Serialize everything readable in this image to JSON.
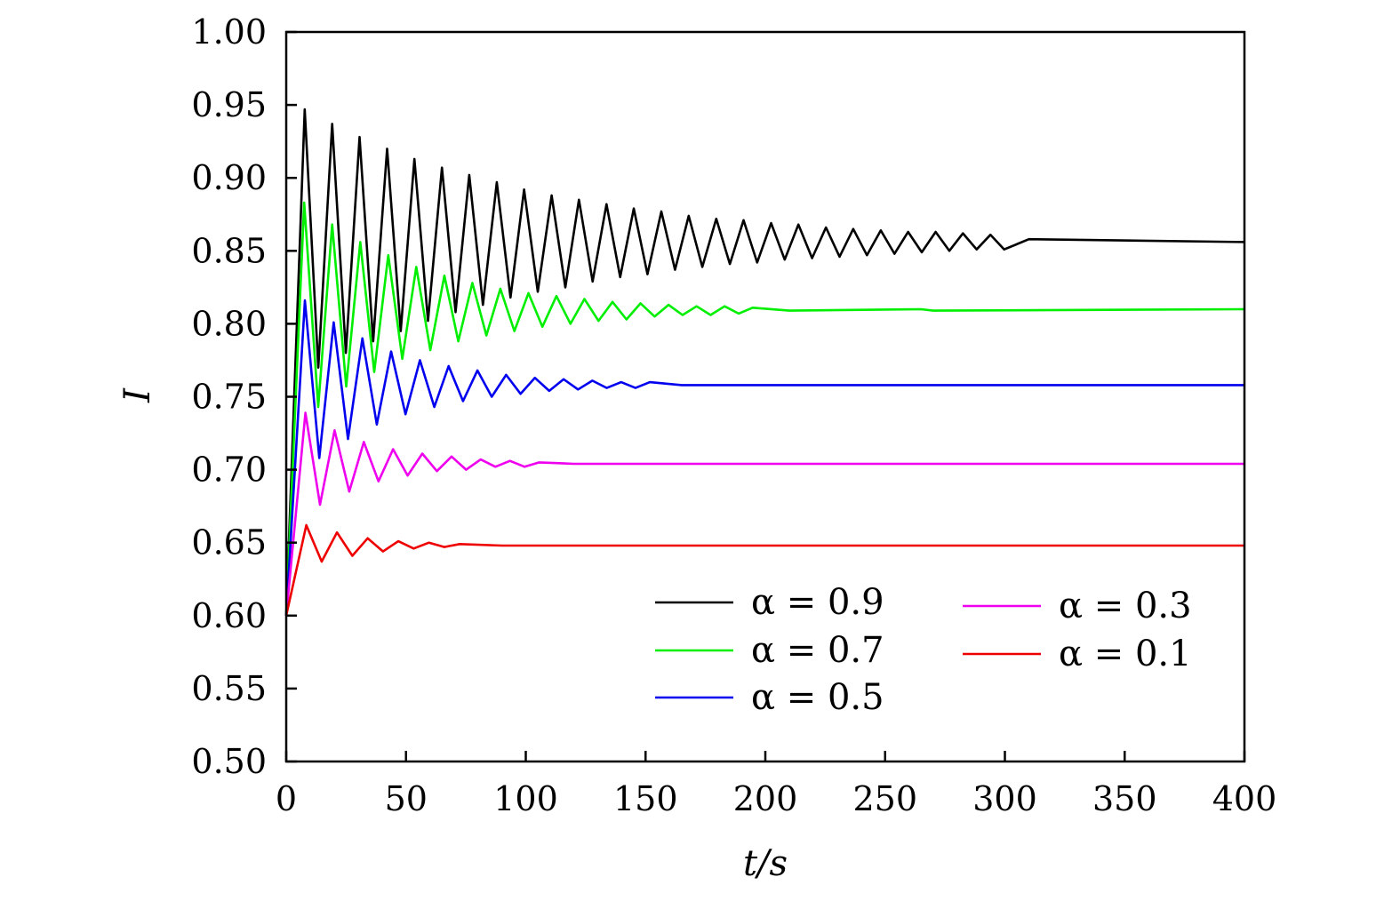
{
  "chart_data": {
    "type": "line",
    "title": "",
    "xlabel": "t/s",
    "ylabel": "I",
    "xlim": [
      0,
      400
    ],
    "ylim": [
      0.5,
      1.0
    ],
    "xticks": [
      "0",
      "50",
      "100",
      "150",
      "200",
      "250",
      "300",
      "350",
      "400"
    ],
    "yticks": [
      "0.50",
      "0.55",
      "0.60",
      "0.65",
      "0.70",
      "0.75",
      "0.80",
      "0.85",
      "0.90",
      "0.95",
      "1.00"
    ],
    "grid": false,
    "legend": "bottom-right",
    "series": [
      {
        "name": "α = 0.9",
        "color": "#000000",
        "points": [
          [
            0,
            0.6
          ],
          [
            7.7,
            0.947
          ],
          [
            13.4,
            0.77
          ],
          [
            19.2,
            0.937
          ],
          [
            24.9,
            0.78
          ],
          [
            30.6,
            0.928
          ],
          [
            36.3,
            0.788
          ],
          [
            42.1,
            0.92
          ],
          [
            47.8,
            0.795
          ],
          [
            53.5,
            0.913
          ],
          [
            59.2,
            0.802
          ],
          [
            65.0,
            0.907
          ],
          [
            70.7,
            0.808
          ],
          [
            76.4,
            0.902
          ],
          [
            82.1,
            0.813
          ],
          [
            87.9,
            0.897
          ],
          [
            93.6,
            0.818
          ],
          [
            99.3,
            0.892
          ],
          [
            105.0,
            0.822
          ],
          [
            110.8,
            0.888
          ],
          [
            116.5,
            0.825
          ],
          [
            122.2,
            0.885
          ],
          [
            127.9,
            0.829
          ],
          [
            133.7,
            0.882
          ],
          [
            139.4,
            0.832
          ],
          [
            145.1,
            0.879
          ],
          [
            150.8,
            0.834
          ],
          [
            156.6,
            0.877
          ],
          [
            162.3,
            0.837
          ],
          [
            168.0,
            0.874
          ],
          [
            173.7,
            0.839
          ],
          [
            179.5,
            0.872
          ],
          [
            185.2,
            0.841
          ],
          [
            190.9,
            0.871
          ],
          [
            196.6,
            0.842
          ],
          [
            202.4,
            0.869
          ],
          [
            208.1,
            0.844
          ],
          [
            213.8,
            0.868
          ],
          [
            219.5,
            0.845
          ],
          [
            225.3,
            0.866
          ],
          [
            231.0,
            0.846
          ],
          [
            236.7,
            0.865
          ],
          [
            242.4,
            0.847
          ],
          [
            248.2,
            0.864
          ],
          [
            253.9,
            0.848
          ],
          [
            259.6,
            0.863
          ],
          [
            265.3,
            0.849
          ],
          [
            271.1,
            0.863
          ],
          [
            276.8,
            0.85
          ],
          [
            282.5,
            0.862
          ],
          [
            288.2,
            0.851
          ],
          [
            294.0,
            0.861
          ],
          [
            299.7,
            0.851
          ],
          [
            310,
            0.858
          ],
          [
            400,
            0.856
          ]
        ]
      },
      {
        "name": "α = 0.7",
        "color": "#00ee00",
        "points": [
          [
            0,
            0.6
          ],
          [
            7.5,
            0.883
          ],
          [
            13.35,
            0.743
          ],
          [
            19.2,
            0.868
          ],
          [
            25.05,
            0.757
          ],
          [
            30.9,
            0.856
          ],
          [
            36.75,
            0.767
          ],
          [
            42.6,
            0.847
          ],
          [
            48.45,
            0.776
          ],
          [
            54.3,
            0.839
          ],
          [
            60.15,
            0.782
          ],
          [
            66.0,
            0.833
          ],
          [
            71.85,
            0.788
          ],
          [
            77.7,
            0.828
          ],
          [
            83.55,
            0.792
          ],
          [
            89.4,
            0.824
          ],
          [
            95.25,
            0.795
          ],
          [
            101.1,
            0.821
          ],
          [
            106.95,
            0.798
          ],
          [
            112.8,
            0.819
          ],
          [
            118.65,
            0.8
          ],
          [
            124.5,
            0.817
          ],
          [
            130.35,
            0.802
          ],
          [
            136.2,
            0.815
          ],
          [
            142.05,
            0.803
          ],
          [
            147.9,
            0.814
          ],
          [
            153.75,
            0.805
          ],
          [
            159.6,
            0.813
          ],
          [
            165.45,
            0.806
          ],
          [
            171.3,
            0.812
          ],
          [
            177.15,
            0.806
          ],
          [
            183.0,
            0.812
          ],
          [
            188.85,
            0.807
          ],
          [
            194.7,
            0.811
          ],
          [
            210,
            0.809
          ],
          [
            265,
            0.81
          ],
          [
            270,
            0.809
          ],
          [
            400,
            0.81
          ]
        ]
      },
      {
        "name": "α = 0.5",
        "color": "#0000ee",
        "points": [
          [
            0,
            0.6
          ],
          [
            7.8,
            0.816
          ],
          [
            13.8,
            0.708
          ],
          [
            19.8,
            0.801
          ],
          [
            25.8,
            0.721
          ],
          [
            31.8,
            0.79
          ],
          [
            37.8,
            0.731
          ],
          [
            43.8,
            0.781
          ],
          [
            49.8,
            0.738
          ],
          [
            55.8,
            0.775
          ],
          [
            61.8,
            0.743
          ],
          [
            67.8,
            0.771
          ],
          [
            73.8,
            0.747
          ],
          [
            79.8,
            0.768
          ],
          [
            85.8,
            0.75
          ],
          [
            91.8,
            0.765
          ],
          [
            97.8,
            0.752
          ],
          [
            103.8,
            0.763
          ],
          [
            109.8,
            0.754
          ],
          [
            115.8,
            0.762
          ],
          [
            121.8,
            0.755
          ],
          [
            127.8,
            0.761
          ],
          [
            133.8,
            0.756
          ],
          [
            139.8,
            0.76
          ],
          [
            145.8,
            0.756
          ],
          [
            151.8,
            0.76
          ],
          [
            165,
            0.758
          ],
          [
            400,
            0.758
          ]
        ]
      },
      {
        "name": "α = 0.3",
        "color": "#ee00ee",
        "points": [
          [
            0,
            0.6
          ],
          [
            8.0,
            0.739
          ],
          [
            14.1,
            0.676
          ],
          [
            20.2,
            0.727
          ],
          [
            26.3,
            0.685
          ],
          [
            32.4,
            0.719
          ],
          [
            38.5,
            0.692
          ],
          [
            44.6,
            0.714
          ],
          [
            50.7,
            0.696
          ],
          [
            56.8,
            0.711
          ],
          [
            62.9,
            0.699
          ],
          [
            69.0,
            0.709
          ],
          [
            75.1,
            0.7
          ],
          [
            81.2,
            0.707
          ],
          [
            87.3,
            0.702
          ],
          [
            93.4,
            0.706
          ],
          [
            99.5,
            0.702
          ],
          [
            105.6,
            0.705
          ],
          [
            120,
            0.704
          ],
          [
            400,
            0.704
          ]
        ]
      },
      {
        "name": "α = 0.1",
        "color": "#ee0000",
        "points": [
          [
            0,
            0.6
          ],
          [
            8.4,
            0.662
          ],
          [
            14.8,
            0.637
          ],
          [
            21.2,
            0.657
          ],
          [
            27.6,
            0.641
          ],
          [
            34.0,
            0.653
          ],
          [
            40.4,
            0.644
          ],
          [
            46.8,
            0.651
          ],
          [
            53.2,
            0.646
          ],
          [
            59.6,
            0.65
          ],
          [
            66.0,
            0.647
          ],
          [
            72.4,
            0.649
          ],
          [
            90,
            0.648
          ],
          [
            400,
            0.648
          ]
        ]
      }
    ]
  }
}
